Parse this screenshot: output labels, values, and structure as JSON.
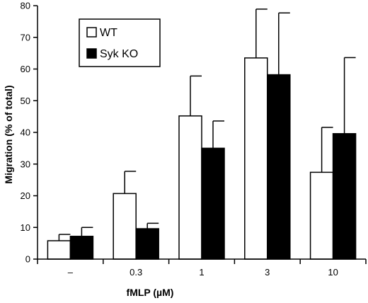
{
  "chart_data": {
    "type": "bar",
    "title": "",
    "xlabel": "fMLP (µM)",
    "ylabel": "Migration (% of total)",
    "ylim": [
      0,
      80
    ],
    "yticks": [
      0,
      10,
      20,
      30,
      40,
      50,
      60,
      70,
      80
    ],
    "categories": [
      "–",
      "0.3",
      "1",
      "3",
      "10"
    ],
    "series": [
      {
        "name": "WT",
        "color": "#ffffff",
        "values": [
          5.8,
          20.7,
          45.2,
          63.5,
          27.4
        ],
        "error": [
          2.0,
          7.0,
          12.6,
          15.4,
          14.2
        ]
      },
      {
        "name": "Syk KO",
        "color": "#000000",
        "values": [
          7.2,
          9.6,
          35.0,
          58.2,
          39.6
        ],
        "error": [
          2.8,
          1.7,
          8.6,
          19.5,
          24.0
        ]
      }
    ],
    "legend": "top-left",
    "grid": false
  }
}
